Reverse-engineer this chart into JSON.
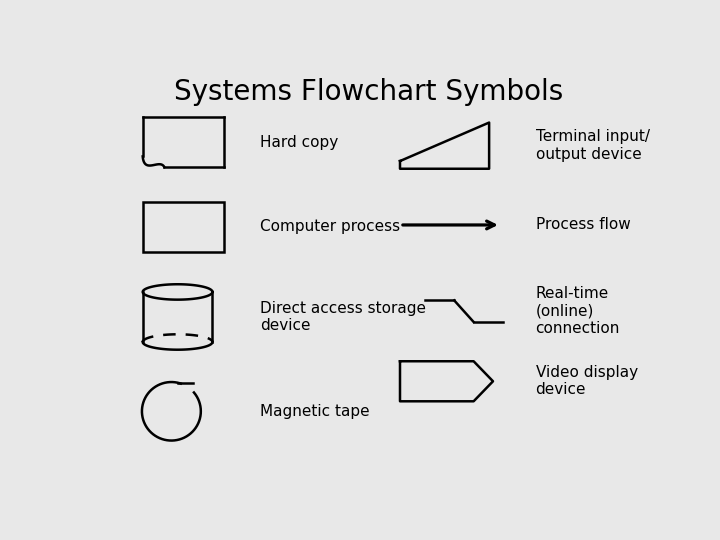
{
  "title": "Systems Flowchart Symbols",
  "title_fontsize": 20,
  "bg_color": "#e8e8e8",
  "symbol_color": "#000000",
  "lw": 1.8,
  "labels": {
    "hard_copy": "Hard copy",
    "computer_process": "Computer process",
    "direct_access": "Direct access storage\ndevice",
    "magnetic_tape": "Magnetic tape",
    "terminal_io": "Terminal input/\noutput device",
    "process_flow": "Process flow",
    "realtime": "Real-time\n(online)\nconnection",
    "video_display": "Video display\ndevice"
  },
  "label_fontsize": 11
}
